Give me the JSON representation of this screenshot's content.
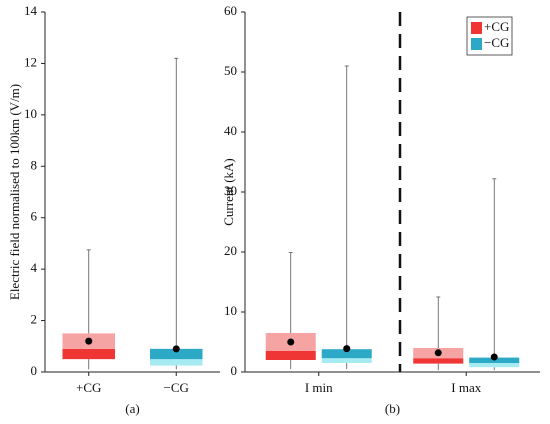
{
  "chart_data": [
    {
      "type": "box",
      "ylabel": "Electric field normalised to 100km (V/m)",
      "xlabel": "(a)",
      "ylim": [
        0,
        14
      ],
      "yticks": [
        0,
        2,
        4,
        6,
        8,
        10,
        12,
        14
      ],
      "categories": [
        "+CG",
        "−CG"
      ],
      "boxes": [
        {
          "low": 0.1,
          "q1": 0.5,
          "median": 0.9,
          "q3": 1.5,
          "high": 4.75,
          "mean": 1.2,
          "colors": [
            "#f03535",
            "#f5a3a3"
          ]
        },
        {
          "low": 0.1,
          "q1": 0.25,
          "median": 0.5,
          "q3": 0.9,
          "high": 12.2,
          "mean": 0.9,
          "colors": [
            "#a6eaf2",
            "#2ba9c6"
          ]
        }
      ]
    },
    {
      "type": "box",
      "ylabel": "Current (kA)",
      "xlabel": "(b)",
      "ylim": [
        0,
        60
      ],
      "yticks": [
        0,
        10,
        20,
        30,
        40,
        50,
        60
      ],
      "categories": [
        "I min",
        "I max"
      ],
      "legend": "upper right",
      "series": [
        {
          "name": "+CG",
          "color": "#f03535",
          "colors": [
            "#f03535",
            "#f5a3a3"
          ],
          "boxes": [
            {
              "low": 0.5,
              "q1": 2,
              "median": 3.5,
              "q3": 6.5,
              "high": 19.9,
              "mean": 5
            },
            {
              "low": 0.3,
              "q1": 1.4,
              "median": 2.3,
              "q3": 4,
              "high": 12.5,
              "mean": 3.2
            }
          ]
        },
        {
          "name": "−CG",
          "color": "#2ba9c6",
          "colors": [
            "#a6eaf2",
            "#2ba9c6"
          ],
          "boxes": [
            {
              "low": 0.5,
              "q1": 1.5,
              "median": 2.3,
              "q3": 3.8,
              "high": 51,
              "mean": 3.9
            },
            {
              "low": 0.3,
              "q1": 0.8,
              "median": 1.5,
              "q3": 2.4,
              "high": 32.2,
              "mean": 2.5
            }
          ]
        }
      ]
    }
  ]
}
